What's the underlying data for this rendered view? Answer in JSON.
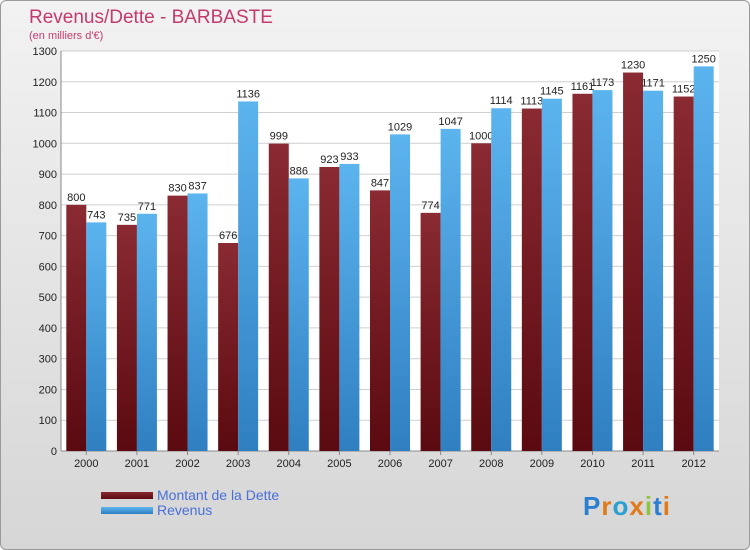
{
  "title": "Revenus/Dette - BARBASTE",
  "subtitle": "(en milliers d'€)",
  "brand": "Proxiti",
  "colors": {
    "dette": "#7a1b24",
    "revenus": "#4aa6e6",
    "title": "#c33a6e",
    "legend_text": "#4a6fd8"
  },
  "chart_data": {
    "type": "bar",
    "categories": [
      "2000",
      "2001",
      "2002",
      "2003",
      "2004",
      "2005",
      "2006",
      "2007",
      "2008",
      "2009",
      "2010",
      "2011",
      "2012"
    ],
    "series": [
      {
        "name": "Montant de la Dette",
        "values": [
          800,
          735,
          830,
          676,
          999,
          923,
          847,
          774,
          1000,
          1113,
          1161,
          1230,
          1152
        ]
      },
      {
        "name": "Revenus",
        "values": [
          743,
          771,
          837,
          1136,
          886,
          933,
          1029,
          1047,
          1114,
          1145,
          1173,
          1171,
          1250
        ]
      }
    ],
    "ylim": [
      0,
      1300
    ],
    "yticks": [
      0,
      100,
      200,
      300,
      400,
      500,
      600,
      700,
      800,
      900,
      1000,
      1100,
      1200,
      1300
    ],
    "grid": true,
    "legend_position": "bottom-left"
  }
}
